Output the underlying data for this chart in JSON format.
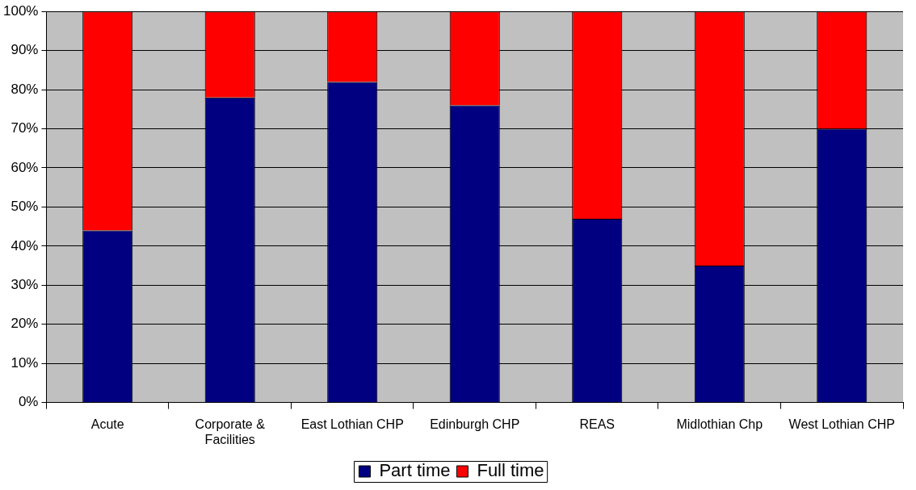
{
  "chart_data": {
    "type": "bar",
    "stacked": true,
    "categories": [
      "Acute",
      "Corporate & Facilities",
      "East Lothian CHP",
      "Edinburgh CHP",
      "REAS",
      "Midlothian Chp",
      "West Lothian CHP"
    ],
    "series": [
      {
        "name": "Part time",
        "color": "#000080",
        "values": [
          44,
          78,
          82,
          76,
          47,
          35,
          70
        ]
      },
      {
        "name": "Full time",
        "color": "#ff0000",
        "values": [
          56,
          22,
          18,
          24,
          53,
          65,
          30
        ]
      }
    ],
    "ylim": [
      0,
      100
    ],
    "yticks": [
      {
        "value": 0,
        "label": "0%"
      },
      {
        "value": 10,
        "label": "10%"
      },
      {
        "value": 20,
        "label": "20%"
      },
      {
        "value": 30,
        "label": "30%"
      },
      {
        "value": 40,
        "label": "40%"
      },
      {
        "value": 50,
        "label": "50%"
      },
      {
        "value": 60,
        "label": "60%"
      },
      {
        "value": 70,
        "label": "70%"
      },
      {
        "value": 80,
        "label": "80%"
      },
      {
        "value": 90,
        "label": "90%"
      },
      {
        "value": 100,
        "label": "100%"
      }
    ],
    "grid": "y",
    "legend": "bottom"
  }
}
